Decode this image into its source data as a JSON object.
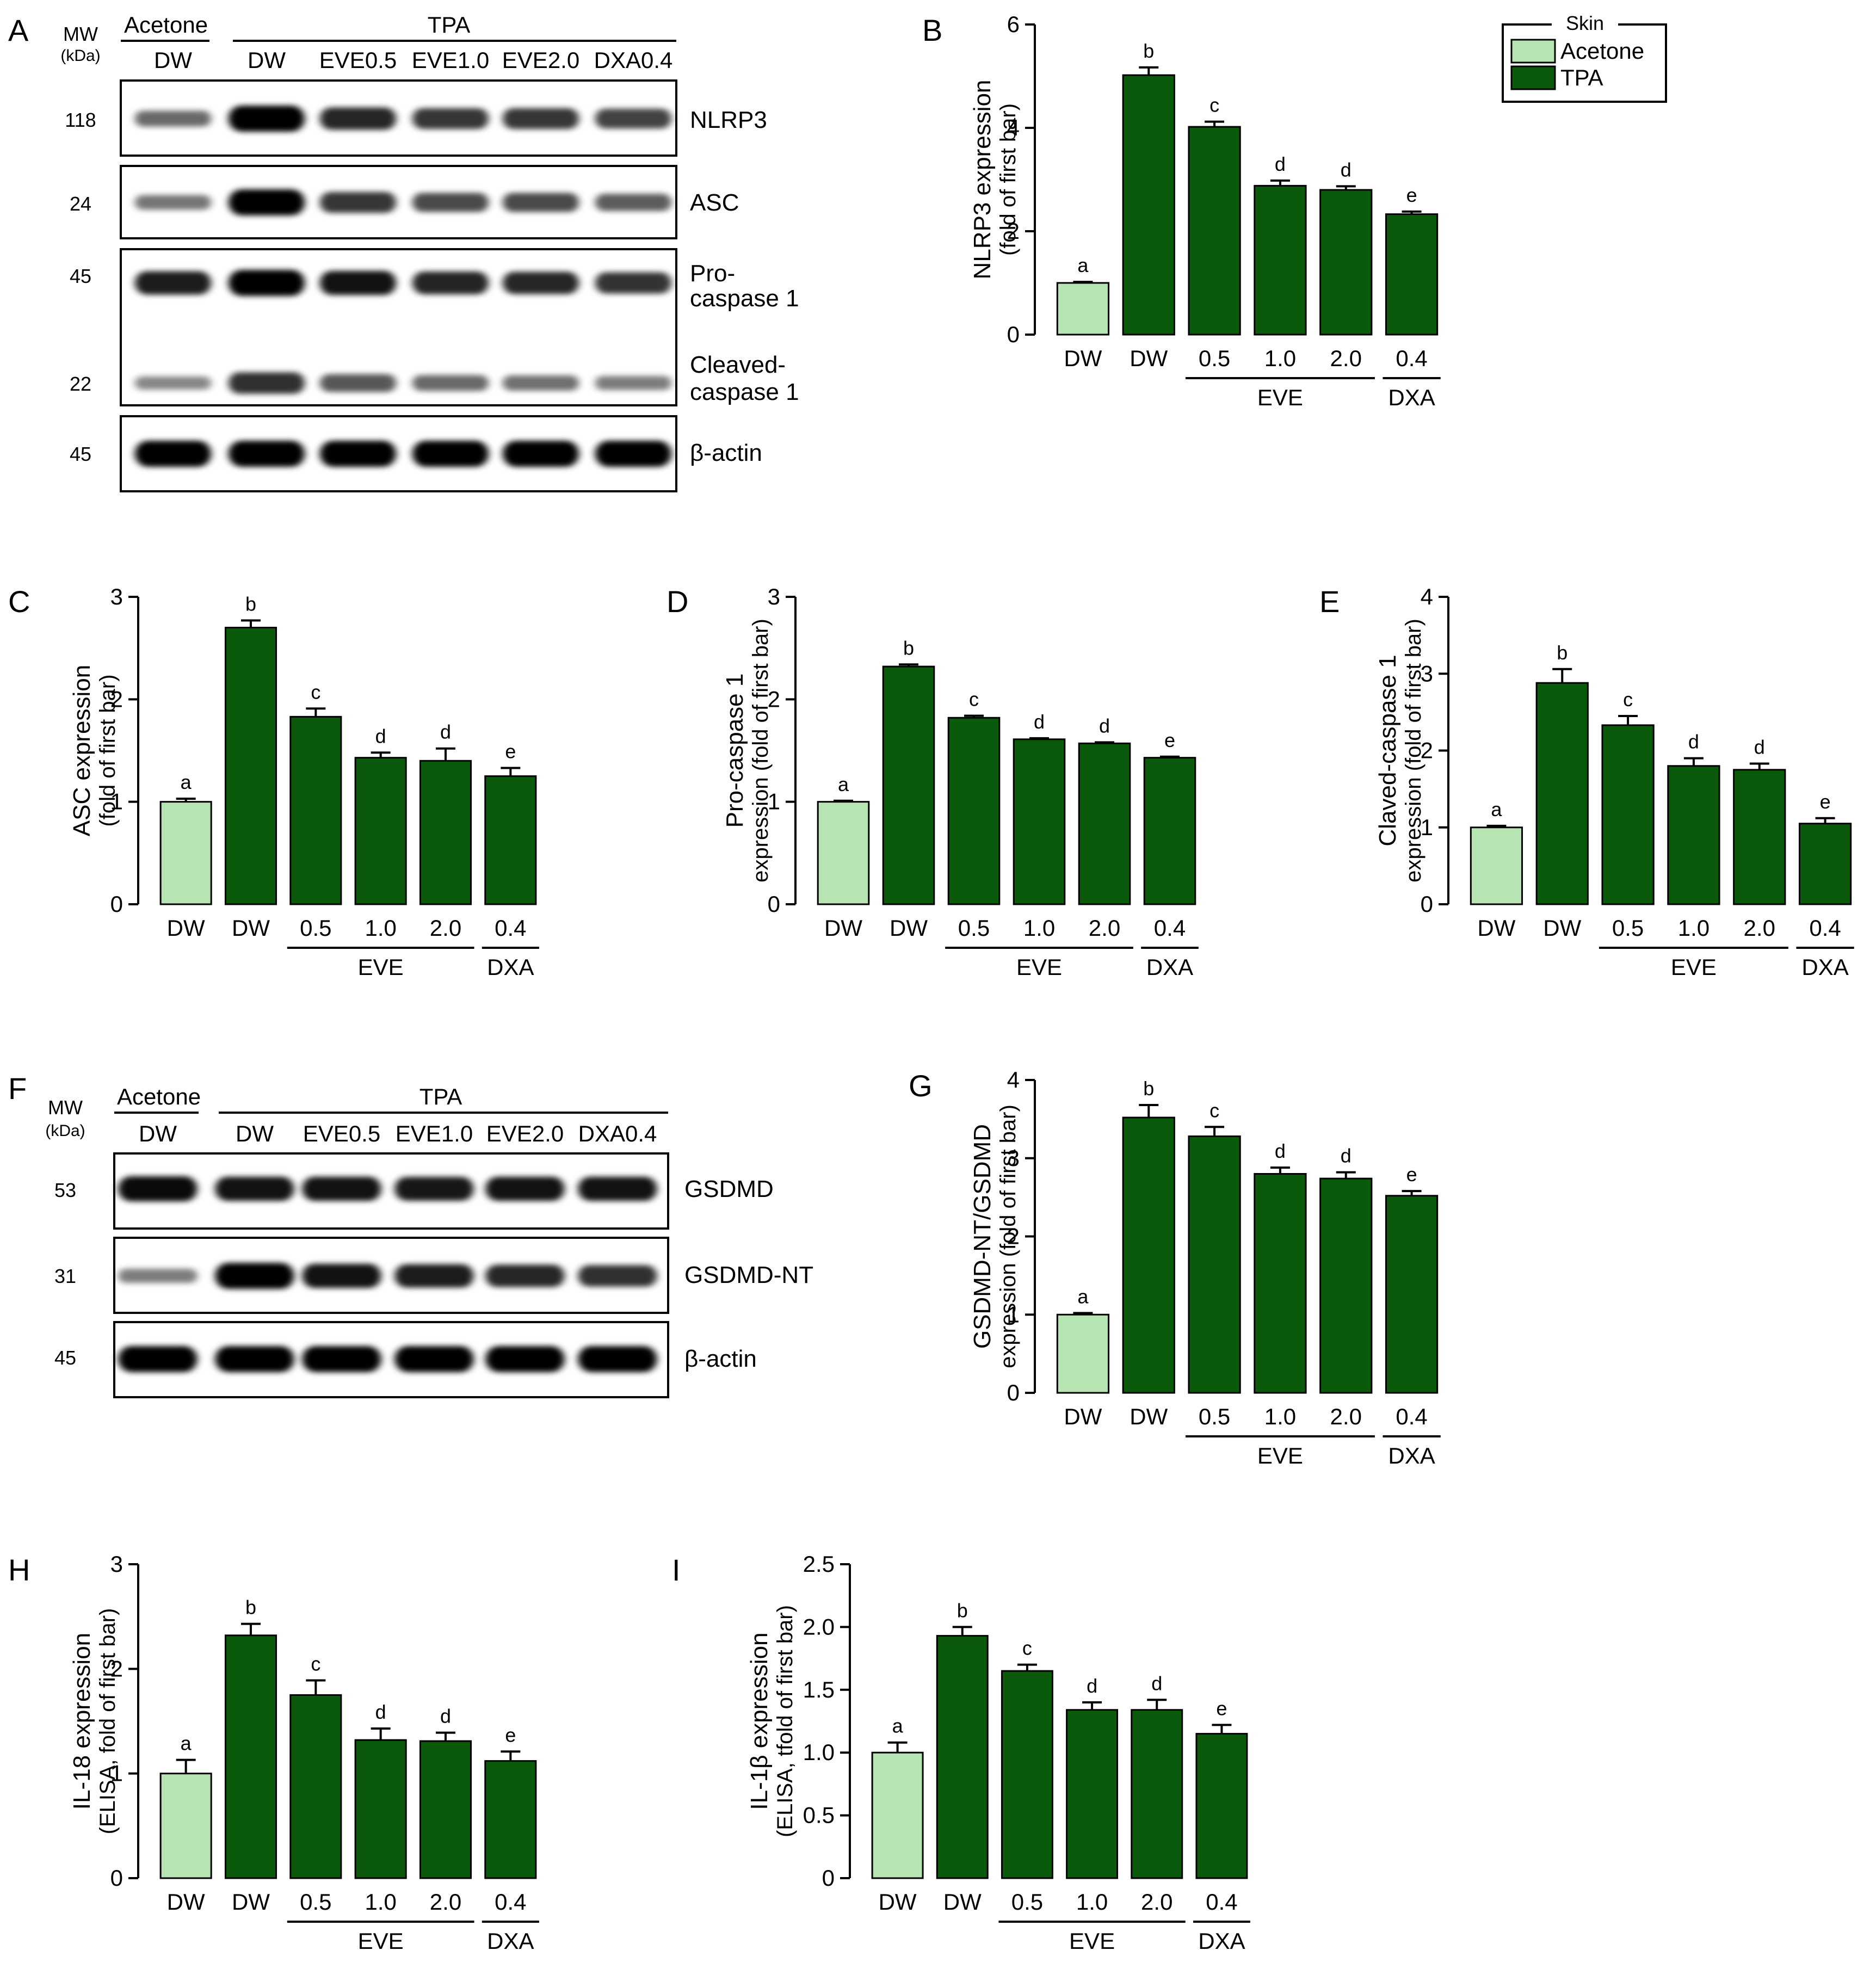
{
  "colors": {
    "acetone": "#b6e4b2",
    "tpa": "#0b5a0b",
    "stroke": "#000000"
  },
  "legend": {
    "title": "Skin",
    "items": [
      {
        "label": "Acetone",
        "color": "#b6e4b2"
      },
      {
        "label": "TPA",
        "color": "#0b5a0b"
      }
    ]
  },
  "blots": [
    {
      "panel": "A",
      "mw_label": "MW",
      "mw_unit": "(kDa)",
      "group_labels": [
        "Acetone",
        "TPA"
      ],
      "lane_labels": [
        "DW",
        "DW",
        "EVE0.5",
        "EVE1.0",
        "EVE2.0",
        "DXA0.4"
      ],
      "boxes": [
        {
          "labels": [
            "NLRP3"
          ],
          "mw": [
            "118"
          ],
          "intensity": [
            0.45,
            1.0,
            0.8,
            0.72,
            0.72,
            0.66
          ]
        },
        {
          "labels": [
            "ASC"
          ],
          "mw": [
            "24"
          ],
          "intensity": [
            0.38,
            1.0,
            0.72,
            0.62,
            0.62,
            0.52
          ]
        },
        {
          "labels": [
            "Pro-",
            "caspase 1",
            "Cleaved-",
            "caspase 1"
          ],
          "mw": [
            "45",
            "22"
          ],
          "intensity": [
            0.85,
            1.0,
            0.9,
            0.82,
            0.8,
            0.74
          ],
          "intensity2": [
            0.3,
            0.75,
            0.55,
            0.45,
            0.42,
            0.35
          ]
        },
        {
          "labels": [
            "β-actin"
          ],
          "mw": [
            "45"
          ],
          "intensity": [
            1.0,
            1.0,
            1.0,
            1.0,
            1.0,
            1.0
          ]
        }
      ]
    },
    {
      "panel": "F",
      "mw_label": "MW",
      "mw_unit": "(kDa)",
      "group_labels": [
        "Acetone",
        "TPA"
      ],
      "lane_labels": [
        "DW",
        "DW",
        "EVE0.5",
        "EVE1.0",
        "EVE2.0",
        "DXA0.4"
      ],
      "boxes": [
        {
          "labels": [
            "GSDMD"
          ],
          "mw": [
            "53"
          ],
          "intensity": [
            0.95,
            0.9,
            0.9,
            0.88,
            0.9,
            0.9
          ]
        },
        {
          "labels": [
            "GSDMD-NT"
          ],
          "mw": [
            "31"
          ],
          "intensity": [
            0.35,
            1.0,
            0.9,
            0.85,
            0.8,
            0.75
          ]
        },
        {
          "labels": [
            "β-actin"
          ],
          "mw": [
            "45"
          ],
          "intensity": [
            1.0,
            1.0,
            1.0,
            1.0,
            1.0,
            1.0
          ]
        }
      ]
    }
  ],
  "chart_data": [
    {
      "panel": "B",
      "type": "bar",
      "categories": [
        "DW",
        "DW",
        "0.5",
        "1.0",
        "2.0",
        "0.4"
      ],
      "values": [
        1.0,
        5.02,
        4.02,
        2.88,
        2.8,
        2.33
      ],
      "errors": [
        0.02,
        0.15,
        0.1,
        0.1,
        0.07,
        0.05
      ],
      "letters": [
        "a",
        "b",
        "c",
        "d",
        "d",
        "e"
      ],
      "ylabel": [
        "NLRP3 expression",
        "(fold of first bar)"
      ],
      "ylim": [
        0,
        6
      ],
      "yticks": [
        "0",
        "2",
        "4",
        "6"
      ],
      "groups": [
        "EVE",
        "DXA"
      ]
    },
    {
      "panel": "C",
      "type": "bar",
      "categories": [
        "DW",
        "DW",
        "0.5",
        "1.0",
        "2.0",
        "0.4"
      ],
      "values": [
        1.0,
        2.7,
        1.83,
        1.43,
        1.4,
        1.25
      ],
      "errors": [
        0.03,
        0.07,
        0.08,
        0.05,
        0.12,
        0.08
      ],
      "letters": [
        "a",
        "b",
        "c",
        "d",
        "d",
        "e"
      ],
      "ylabel": [
        "ASC expression",
        "(fold of first bar)"
      ],
      "ylim": [
        0,
        3
      ],
      "yticks": [
        "0",
        "1",
        "2",
        "3"
      ],
      "groups": [
        "EVE",
        "DXA"
      ]
    },
    {
      "panel": "D",
      "type": "bar",
      "categories": [
        "DW",
        "DW",
        "0.5",
        "1.0",
        "2.0",
        "0.4"
      ],
      "values": [
        1.0,
        2.32,
        1.82,
        1.61,
        1.57,
        1.43
      ],
      "errors": [
        0.01,
        0.02,
        0.02,
        0.01,
        0.01,
        0.01
      ],
      "letters": [
        "a",
        "b",
        "c",
        "d",
        "d",
        "e"
      ],
      "ylabel": [
        "Pro-caspase 1",
        "expression (fold of first bar)"
      ],
      "ylim": [
        0,
        3
      ],
      "yticks": [
        "0",
        "1",
        "2",
        "3"
      ],
      "groups": [
        "EVE",
        "DXA"
      ]
    },
    {
      "panel": "E",
      "type": "bar",
      "categories": [
        "DW",
        "DW",
        "0.5",
        "1.0",
        "2.0",
        "0.4"
      ],
      "values": [
        1.0,
        2.88,
        2.33,
        1.8,
        1.75,
        1.05
      ],
      "errors": [
        0.02,
        0.18,
        0.12,
        0.1,
        0.08,
        0.07
      ],
      "letters": [
        "a",
        "b",
        "c",
        "d",
        "d",
        "e"
      ],
      "ylabel": [
        "Claved-caspase 1",
        "expression (fold of first bar)"
      ],
      "ylim": [
        0,
        4
      ],
      "yticks": [
        "0",
        "1",
        "2",
        "3",
        "4"
      ],
      "groups": [
        "EVE",
        "DXA"
      ]
    },
    {
      "panel": "G",
      "type": "bar",
      "categories": [
        "DW",
        "DW",
        "0.5",
        "1.0",
        "2.0",
        "0.4"
      ],
      "values": [
        1.0,
        3.52,
        3.28,
        2.8,
        2.74,
        2.52
      ],
      "errors": [
        0.02,
        0.16,
        0.12,
        0.08,
        0.08,
        0.06
      ],
      "letters": [
        "a",
        "b",
        "c",
        "d",
        "d",
        "e"
      ],
      "ylabel": [
        "GSDMD-NT/GSDMD",
        "expression (fold of first bar)"
      ],
      "ylim": [
        0,
        4
      ],
      "yticks": [
        "0",
        "1",
        "2",
        "3",
        "4"
      ],
      "groups": [
        "EVE",
        "DXA"
      ]
    },
    {
      "panel": "H",
      "type": "bar",
      "categories": [
        "DW",
        "DW",
        "0.5",
        "1.0",
        "2.0",
        "0.4"
      ],
      "values": [
        1.0,
        2.32,
        1.75,
        1.32,
        1.31,
        1.12
      ],
      "errors": [
        0.13,
        0.11,
        0.14,
        0.11,
        0.08,
        0.09
      ],
      "letters": [
        "a",
        "b",
        "c",
        "d",
        "d",
        "e"
      ],
      "ylabel": [
        "IL-18 expression",
        "(ELISA, fold of first bar)"
      ],
      "ylim": [
        0,
        3
      ],
      "yticks": [
        "0",
        "1",
        "2",
        "3"
      ],
      "groups": [
        "EVE",
        "DXA"
      ]
    },
    {
      "panel": "I",
      "type": "bar",
      "categories": [
        "DW",
        "DW",
        "0.5",
        "1.0",
        "2.0",
        "0.4"
      ],
      "values": [
        1.0,
        1.93,
        1.65,
        1.34,
        1.34,
        1.15
      ],
      "errors": [
        0.08,
        0.07,
        0.05,
        0.06,
        0.08,
        0.07
      ],
      "letters": [
        "a",
        "b",
        "c",
        "d",
        "d",
        "e"
      ],
      "ylabel": [
        "IL-1β expression",
        "(ELISA, tfold of first bar)"
      ],
      "ylim": [
        0,
        2.5
      ],
      "yticks": [
        "0",
        "0.5",
        "1.0",
        "1.5",
        "2.0",
        "2.5"
      ],
      "groups": [
        "EVE",
        "DXA"
      ]
    }
  ]
}
